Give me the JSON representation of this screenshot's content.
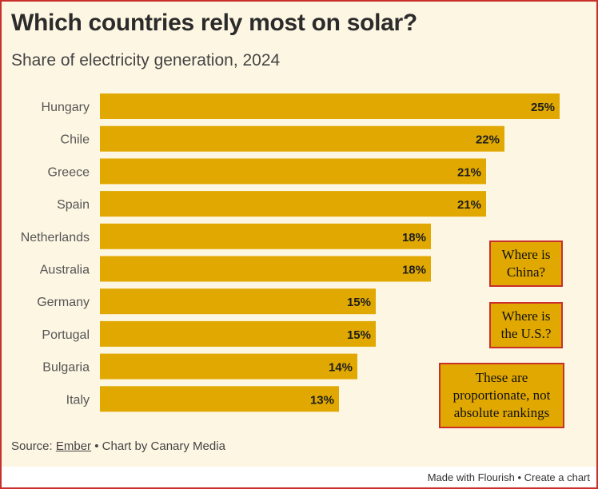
{
  "title": "Which countries rely most on solar?",
  "subtitle": "Share of electricity generation, 2024",
  "chart_data": {
    "type": "bar",
    "orientation": "horizontal",
    "title": "Which countries rely most on solar?",
    "subtitle": "Share of electricity generation, 2024",
    "categories": [
      "Hungary",
      "Chile",
      "Greece",
      "Spain",
      "Netherlands",
      "Australia",
      "Germany",
      "Portugal",
      "Bulgaria",
      "Italy"
    ],
    "values": [
      25,
      22,
      21,
      21,
      18,
      18,
      15,
      15,
      14,
      13
    ],
    "labels": [
      "25%",
      "22%",
      "21%",
      "21%",
      "18%",
      "18%",
      "15%",
      "15%",
      "14%",
      "13%"
    ],
    "unit": "%",
    "xlim": [
      0,
      25
    ],
    "xlabel": "",
    "ylabel": "",
    "bar_color": "#e0a800"
  },
  "source": {
    "prefix": "Source:",
    "link_text": "Ember",
    "separator": "•",
    "suffix": "Chart by Canary Media"
  },
  "footer": {
    "made_with": "Made with Flourish",
    "separator": "•",
    "create": "Create a chart"
  },
  "notes": {
    "china": "Where is China?",
    "us": "Where is the U.S.?",
    "proportion": "These are proportionate, not absolute rankings"
  },
  "colors": {
    "background": "#fdf6e3",
    "bar": "#e0a800",
    "note_border": "#c9302c"
  }
}
